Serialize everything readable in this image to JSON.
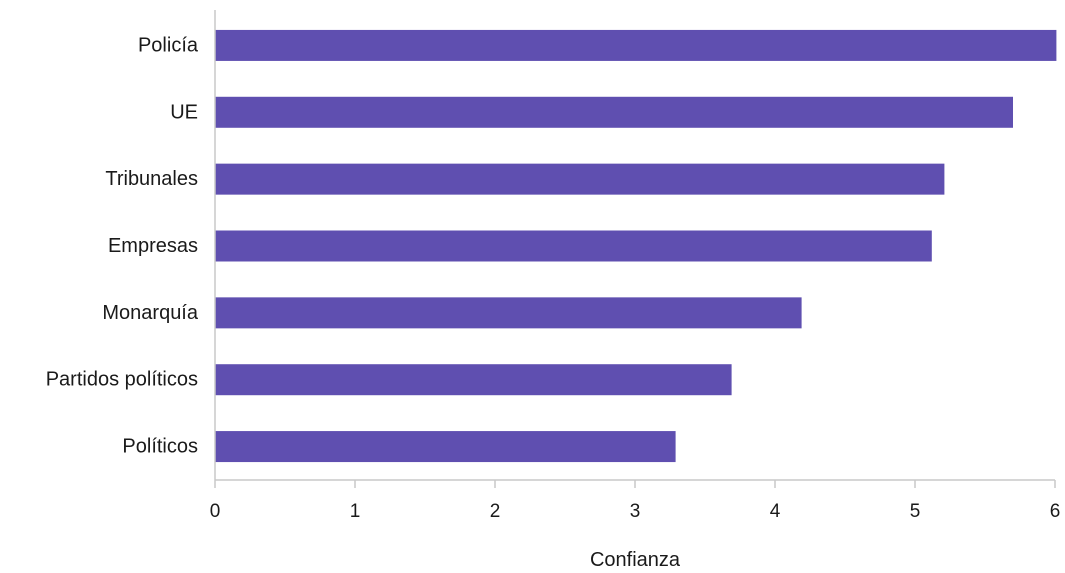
{
  "chart_data": {
    "type": "bar",
    "orientation": "horizontal",
    "categories": [
      "Policía",
      "UE",
      "Tribunales",
      "Empresas",
      "Monarquía",
      "Partidos políticos",
      "Políticos"
    ],
    "series": [
      {
        "values": [
          6.01,
          5.7,
          5.21,
          5.12,
          4.19,
          3.69,
          3.29
        ],
        "color": "#5f4fb0"
      }
    ],
    "xlabel": "Confianza",
    "ylabel": "",
    "xlim": [
      0,
      6
    ],
    "xticks": [
      "0",
      "1",
      "2",
      "3",
      "4",
      "5",
      "6"
    ],
    "grid": false,
    "legend": "none",
    "axis_color": "#c8c8c8"
  }
}
